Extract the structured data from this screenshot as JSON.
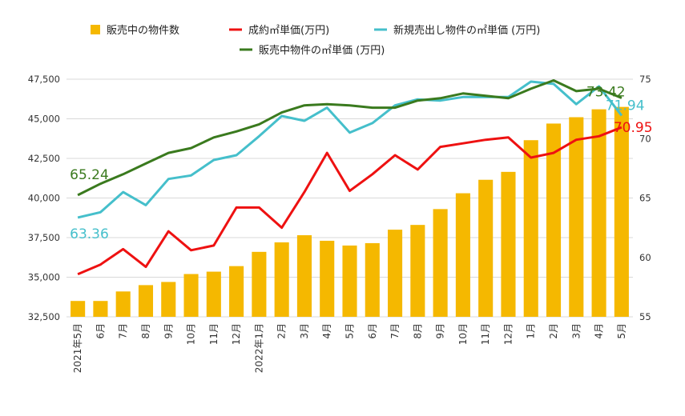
{
  "chart_data": {
    "type": "bar+line",
    "categories": [
      "2021年5月",
      "6月",
      "7月",
      "8月",
      "9月",
      "10月",
      "11月",
      "12月",
      "2022年1月",
      "2月",
      "3月",
      "4月",
      "5月",
      "6月",
      "7月",
      "8月",
      "9月",
      "10月",
      "11月",
      "12月",
      "1月",
      "2月",
      "3月",
      "4月",
      "5月"
    ],
    "legend": [
      {
        "key": "bars",
        "label": "販売中の物件数",
        "color": "#F5B800",
        "marker": "square"
      },
      {
        "key": "contract",
        "label": "成約㎡単価(万円)",
        "color": "#EE1111",
        "marker": "line"
      },
      {
        "key": "new_listing",
        "label": "新規売出し物件の㎡単価 (万円)",
        "color": "#45BFCB",
        "marker": "line"
      },
      {
        "key": "on_sale",
        "label": "販売中物件の㎡単価 (万円)",
        "color": "#3A7A1E",
        "marker": "line"
      }
    ],
    "bars": {
      "name": "販売中の物件数",
      "color": "#F5B800",
      "axis": "left",
      "values": [
        33500,
        33500,
        34100,
        34500,
        34700,
        35200,
        35350,
        35700,
        36600,
        37200,
        37650,
        37300,
        37000,
        37150,
        38000,
        38300,
        39300,
        40300,
        41150,
        41650,
        43650,
        44700,
        45100,
        45600,
        45750
      ]
    },
    "lines": [
      {
        "name": "成約㎡単価(万円)",
        "color": "#EE1111",
        "axis": "right",
        "values": [
          58.59,
          59.4,
          60.7,
          59.2,
          62.2,
          60.6,
          61.0,
          64.2,
          64.2,
          62.5,
          65.5,
          68.8,
          65.6,
          67.0,
          68.6,
          67.4,
          69.3,
          69.6,
          69.9,
          70.1,
          68.4,
          68.8,
          69.9,
          70.2,
          70.95
        ],
        "end_label": "70.95"
      },
      {
        "name": "新規売出し物件の㎡単価 (万円)",
        "color": "#45BFCB",
        "axis": "right",
        "values": [
          63.36,
          63.8,
          65.5,
          64.4,
          66.6,
          66.9,
          68.2,
          68.6,
          70.2,
          71.9,
          71.5,
          72.6,
          70.5,
          71.3,
          72.8,
          73.3,
          73.2,
          73.5,
          73.5,
          73.5,
          74.8,
          74.6,
          72.9,
          74.4,
          71.94
        ],
        "start_label": "63.36",
        "end_label": "71.94"
      },
      {
        "name": "販売中物件の㎡単価 (万円)",
        "color": "#3A7A1E",
        "axis": "right",
        "values": [
          65.24,
          66.2,
          67.0,
          67.9,
          68.8,
          69.2,
          70.1,
          70.6,
          71.2,
          72.2,
          72.8,
          72.9,
          72.8,
          72.6,
          72.6,
          73.2,
          73.4,
          73.8,
          73.6,
          73.4,
          74.2,
          74.9,
          74.0,
          74.2,
          73.42
        ],
        "start_label": "65.24",
        "end_label": "73.42"
      }
    ],
    "y_left": {
      "min": 32500,
      "max": 47500,
      "ticks": [
        "32,500",
        "35,000",
        "37,500",
        "40,000",
        "42,500",
        "45,000",
        "47,500"
      ]
    },
    "y_right": {
      "min": 55,
      "max": 75,
      "ticks": [
        "55",
        "60",
        "65",
        "70",
        "75"
      ]
    },
    "grid": true,
    "legend_position": "top"
  }
}
